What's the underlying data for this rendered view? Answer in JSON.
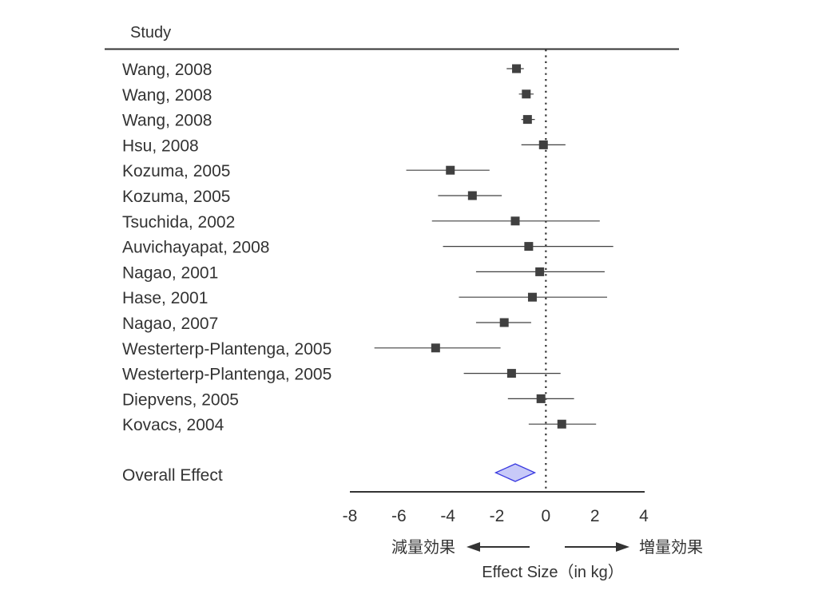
{
  "chart_data": {
    "type": "forest",
    "header": "Study",
    "studies": [
      {
        "label": "Wang, 2008",
        "estimate": -1.2,
        "lower": -1.6,
        "upper": -0.9
      },
      {
        "label": "Wang, 2008",
        "estimate": -0.8,
        "lower": -1.1,
        "upper": -0.5
      },
      {
        "label": "Wang, 2008",
        "estimate": -0.75,
        "lower": -1.0,
        "upper": -0.45
      },
      {
        "label": "Hsu, 2008",
        "estimate": -0.1,
        "lower": -1.0,
        "upper": 0.8
      },
      {
        "label": "Kozuma, 2005",
        "estimate": -3.9,
        "lower": -5.7,
        "upper": -2.3
      },
      {
        "label": "Kozuma, 2005",
        "estimate": -3.0,
        "lower": -4.4,
        "upper": -1.8
      },
      {
        "label": "Tsuchida, 2002",
        "estimate": -1.25,
        "lower": -4.65,
        "upper": 2.2
      },
      {
        "label": "Auvichayapat, 2008",
        "estimate": -0.7,
        "lower": -4.2,
        "upper": 2.75
      },
      {
        "label": "Nagao, 2001",
        "estimate": -0.25,
        "lower": -2.85,
        "upper": 2.4
      },
      {
        "label": "Hase, 2001",
        "estimate": -0.55,
        "lower": -3.55,
        "upper": 2.5
      },
      {
        "label": "Nagao, 2007",
        "estimate": -1.7,
        "lower": -2.85,
        "upper": -0.6
      },
      {
        "label": "Westerterp-Plantenga, 2005",
        "estimate": -4.5,
        "lower": -7.0,
        "upper": -1.85
      },
      {
        "label": "Westerterp-Plantenga, 2005",
        "estimate": -1.4,
        "lower": -3.35,
        "upper": 0.6
      },
      {
        "label": "Diepvens, 2005",
        "estimate": -0.2,
        "lower": -1.55,
        "upper": 1.15
      },
      {
        "label": "Kovacs, 2004",
        "estimate": 0.65,
        "lower": -0.7,
        "upper": 2.05
      }
    ],
    "overall": {
      "label": "Overall Effect",
      "estimate": -1.25,
      "lower": -2.05,
      "upper": -0.45
    },
    "xlim": [
      -8,
      4
    ],
    "xticks": [
      "-8",
      "-6",
      "-4",
      "-2",
      "0",
      "2",
      "4"
    ],
    "reference_line": 0,
    "xlabel": "Effect Size（in kg）",
    "left_arrow_label": "減量効果",
    "right_arrow_label": "増量効果",
    "colors": {
      "marker": "#404040",
      "diamond_fill": "#c8caf8",
      "diamond_stroke": "#3a3ae0",
      "text": "#333333"
    }
  }
}
